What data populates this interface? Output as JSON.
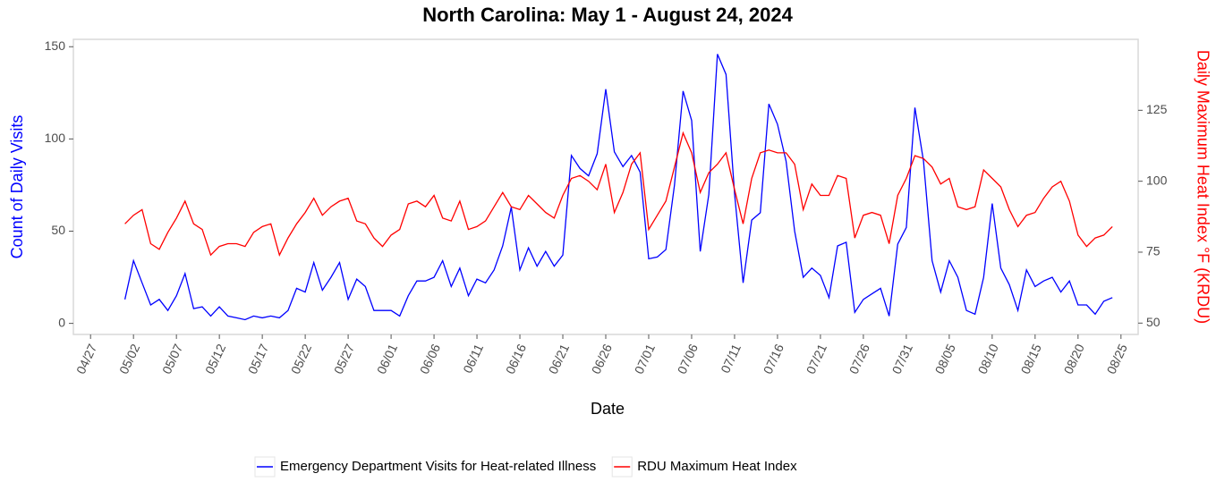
{
  "chart_data": {
    "type": "line",
    "title": "North Carolina: May 1 - August 24, 2024",
    "x_label": "Date",
    "y_label": "Count of Daily Visits",
    "y2_label": "Daily Maximum Heat Index °F (KRDU)",
    "y_label_color": "#0000ff",
    "y2_label_color": "#ff0000",
    "legend": "bottom",
    "grid": false,
    "x": [
      "05/01",
      "05/02",
      "05/03",
      "05/04",
      "05/05",
      "05/06",
      "05/07",
      "05/08",
      "05/09",
      "05/10",
      "05/11",
      "05/12",
      "05/13",
      "05/14",
      "05/15",
      "05/16",
      "05/17",
      "05/18",
      "05/19",
      "05/20",
      "05/21",
      "05/22",
      "05/23",
      "05/24",
      "05/25",
      "05/26",
      "05/27",
      "05/28",
      "05/29",
      "05/30",
      "05/31",
      "06/01",
      "06/02",
      "06/03",
      "06/04",
      "06/05",
      "06/06",
      "06/07",
      "06/08",
      "06/09",
      "06/10",
      "06/11",
      "06/12",
      "06/13",
      "06/14",
      "06/15",
      "06/16",
      "06/17",
      "06/18",
      "06/19",
      "06/20",
      "06/21",
      "06/22",
      "06/23",
      "06/24",
      "06/25",
      "06/26",
      "06/27",
      "06/28",
      "06/29",
      "06/30",
      "07/01",
      "07/02",
      "07/03",
      "07/04",
      "07/05",
      "07/06",
      "07/07",
      "07/08",
      "07/09",
      "07/10",
      "07/11",
      "07/12",
      "07/13",
      "07/14",
      "07/15",
      "07/16",
      "07/17",
      "07/18",
      "07/19",
      "07/20",
      "07/21",
      "07/22",
      "07/23",
      "07/24",
      "07/25",
      "07/26",
      "07/27",
      "07/28",
      "07/29",
      "07/30",
      "07/31",
      "08/01",
      "08/02",
      "08/03",
      "08/04",
      "08/05",
      "08/06",
      "08/07",
      "08/08",
      "08/09",
      "08/10",
      "08/11",
      "08/12",
      "08/13",
      "08/14",
      "08/15",
      "08/16",
      "08/17",
      "08/18",
      "08/19",
      "08/20",
      "08/21",
      "08/22",
      "08/23",
      "08/24"
    ],
    "xlim": [
      "04/25",
      "08/27"
    ],
    "xticks": [
      "04/27",
      "05/02",
      "05/07",
      "05/12",
      "05/17",
      "05/22",
      "05/27",
      "06/01",
      "06/06",
      "06/11",
      "06/16",
      "06/21",
      "06/26",
      "07/01",
      "07/06",
      "07/11",
      "07/16",
      "07/21",
      "07/26",
      "07/31",
      "08/05",
      "08/10",
      "08/15",
      "08/20",
      "08/25"
    ],
    "ylim": [
      -6,
      154
    ],
    "yticks": [
      0,
      50,
      100,
      150
    ],
    "y2lim": [
      46,
      150
    ],
    "y2ticks": [
      50,
      75,
      100,
      125
    ],
    "series": [
      {
        "name": "Emergency Department Visits for Heat-related Illness",
        "color": "#0000ff",
        "values": [
          13,
          34,
          22,
          10,
          13,
          7,
          15,
          27,
          8,
          9,
          4,
          9,
          4,
          3,
          2,
          4,
          3,
          4,
          3,
          7,
          19,
          17,
          33,
          18,
          25,
          33,
          13,
          24,
          20,
          7,
          7,
          7,
          4,
          15,
          23,
          23,
          25,
          34,
          20,
          30,
          15,
          24,
          22,
          29,
          42,
          63,
          29,
          41,
          31,
          39,
          31,
          37,
          91,
          84,
          80,
          92,
          127,
          93,
          85,
          91,
          82,
          35,
          36,
          40,
          75,
          126,
          110,
          39,
          70,
          146,
          135,
          70,
          22,
          56,
          60,
          119,
          108,
          88,
          50,
          25,
          30,
          26,
          14,
          42,
          44,
          6,
          13,
          16,
          19,
          4,
          43,
          52,
          117,
          88,
          34,
          17,
          34,
          25,
          7,
          5,
          25,
          65,
          30,
          21,
          7,
          29,
          20,
          23,
          25,
          17,
          23,
          10,
          10,
          5,
          12,
          14
        ]
      },
      {
        "name": "RDU Maximum Heat Index",
        "color": "#ff0000",
        "axis": "y2",
        "values": [
          85,
          88,
          90,
          78,
          76,
          82,
          87,
          93,
          85,
          83,
          74,
          77,
          78,
          78,
          77,
          82,
          84,
          85,
          74,
          80,
          85,
          89,
          94,
          88,
          91,
          93,
          94,
          86,
          85,
          80,
          77,
          81,
          83,
          92,
          93,
          91,
          95,
          87,
          86,
          93,
          83,
          84,
          86,
          91,
          96,
          91,
          90,
          95,
          92,
          89,
          87,
          95,
          101,
          102,
          100,
          97,
          106,
          89,
          96,
          106,
          110,
          83,
          88,
          93,
          105,
          117,
          110,
          96,
          103,
          106,
          110,
          97,
          85,
          101,
          110,
          111,
          110,
          110,
          106,
          90,
          99,
          95,
          95,
          102,
          101,
          80,
          88,
          89,
          88,
          78,
          95,
          101,
          109,
          108,
          105,
          99,
          101,
          91,
          90,
          91,
          104,
          101,
          98,
          90,
          84,
          88,
          89,
          94,
          98,
          100,
          93,
          81,
          77,
          80,
          81,
          84
        ]
      }
    ]
  }
}
